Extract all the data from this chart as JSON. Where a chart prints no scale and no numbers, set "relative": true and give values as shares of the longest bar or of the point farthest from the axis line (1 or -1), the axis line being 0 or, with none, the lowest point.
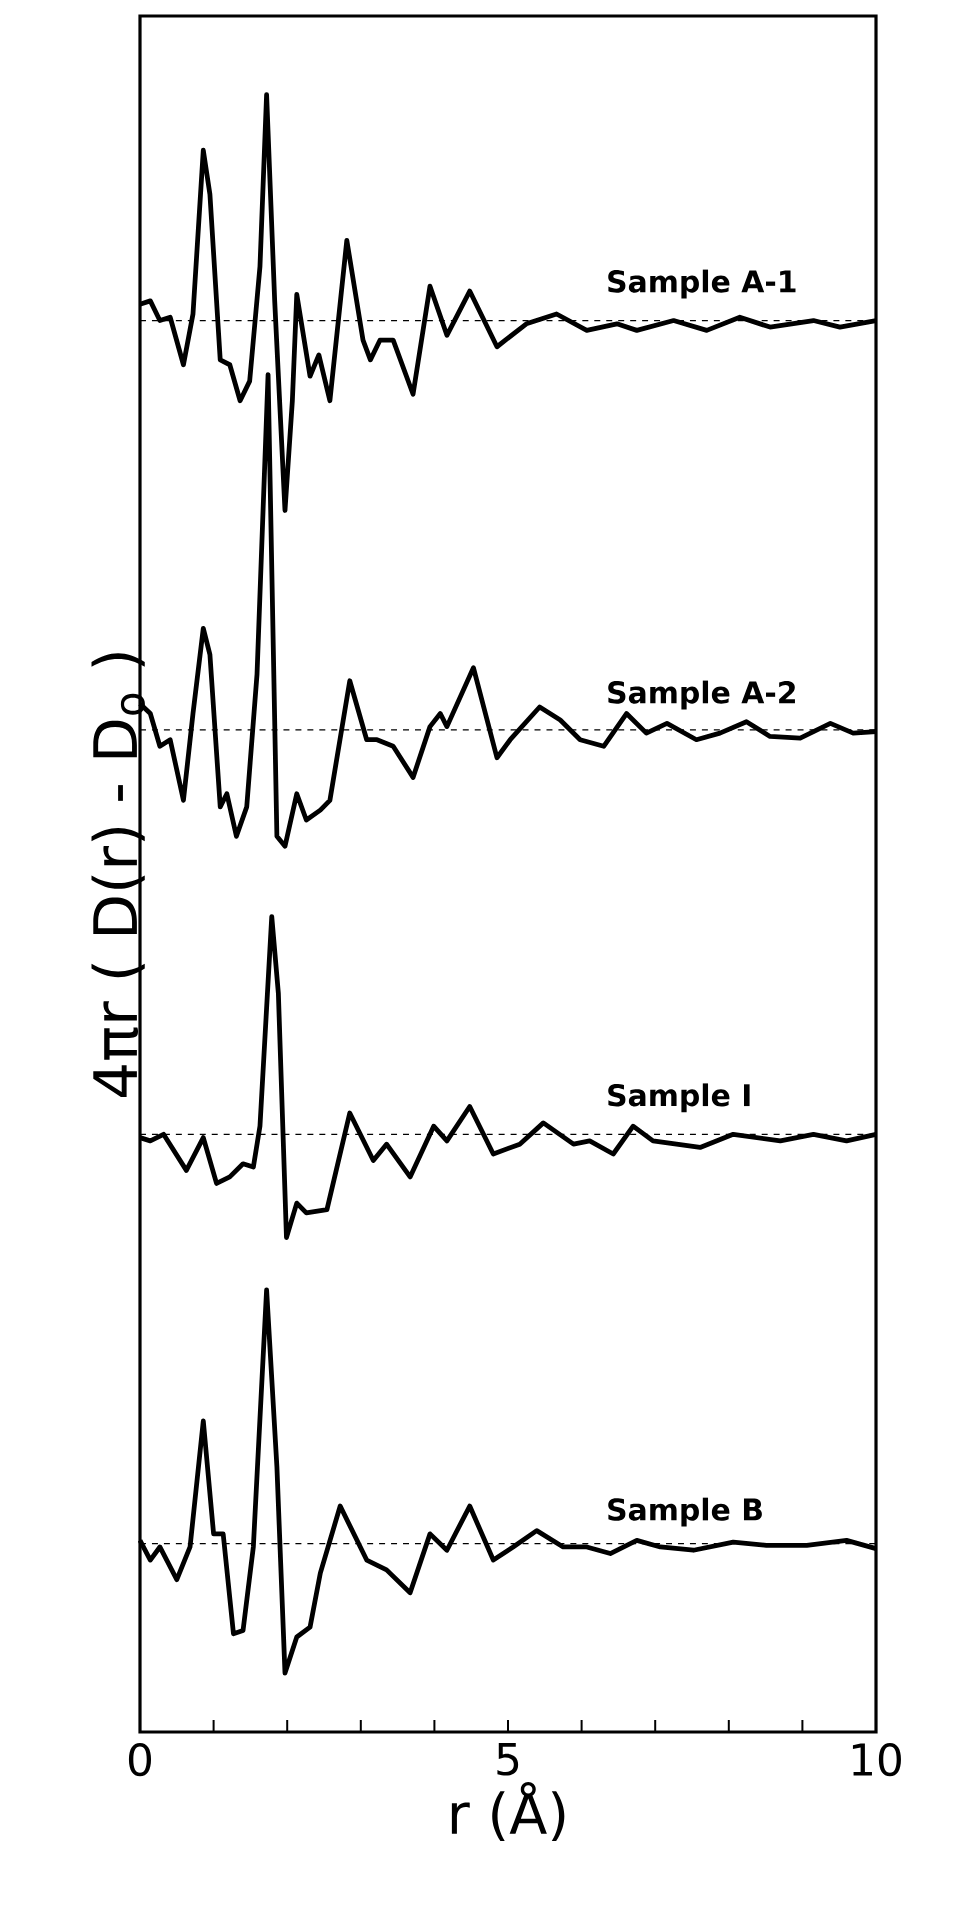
{
  "chart_data": {
    "type": "line",
    "relative": true,
    "xlabel": "r      (Å)",
    "ylabel": "4πr ( D(r) - D$_{o}$ )",
    "xlim": [
      0,
      10
    ],
    "xticks": [
      0,
      {
        "value": 1,
        "label": null
      },
      {
        "value": 2,
        "label": null
      },
      {
        "value": 3,
        "label": null
      },
      {
        "value": 4,
        "label": null
      },
      5,
      {
        "value": 6,
        "label": null
      },
      {
        "value": 7,
        "label": null
      },
      {
        "value": 8,
        "label": null
      },
      {
        "value": 9,
        "label": null
      },
      10
    ],
    "marker": "none",
    "line_style": "solid",
    "ref_lines": [
      {
        "axis": "y",
        "value": 0.862,
        "line_style": "dashed",
        "color": "#000000"
      },
      {
        "axis": "y",
        "value": 0.612,
        "line_style": "dashed",
        "color": "#000000"
      },
      {
        "axis": "y",
        "value": 0.365,
        "line_style": "dashed",
        "color": "#000000"
      },
      {
        "axis": "y",
        "value": 0.115,
        "line_style": "dashed",
        "color": "#000000"
      }
    ],
    "series": [
      {
        "name": "Sample A-1",
        "color": "#000000",
        "x": [
          0,
          0.14,
          0.27,
          0.41,
          0.59,
          0.72,
          0.86,
          0.95,
          1.09,
          1.22,
          1.36,
          1.49,
          1.63,
          1.72,
          1.83,
          1.97,
          2.07,
          2.13,
          2.31,
          2.43,
          2.58,
          2.81,
          3.03,
          3.13,
          3.26,
          3.44,
          3.71,
          3.94,
          4.17,
          4.48,
          4.85,
          5.25,
          5.66,
          6.07,
          6.48,
          6.75,
          7.25,
          7.7,
          8.15,
          8.56,
          9.15,
          9.51,
          10.0
        ],
        "values": [
          0.872,
          0.874,
          0.862,
          0.864,
          0.835,
          0.866,
          0.966,
          0.939,
          0.838,
          0.835,
          0.813,
          0.825,
          0.895,
          1.0,
          0.874,
          0.746,
          0.813,
          0.878,
          0.828,
          0.841,
          0.813,
          0.911,
          0.85,
          0.838,
          0.85,
          0.85,
          0.817,
          0.883,
          0.853,
          0.88,
          0.846,
          0.86,
          0.866,
          0.856,
          0.86,
          0.856,
          0.862,
          0.856,
          0.864,
          0.858,
          0.862,
          0.858,
          0.862
        ]
      },
      {
        "name": "Sample A-2",
        "color": "#000000",
        "x": [
          0,
          0.14,
          0.27,
          0.41,
          0.59,
          0.72,
          0.86,
          0.95,
          1.09,
          1.18,
          1.31,
          1.45,
          1.59,
          1.74,
          1.86,
          1.97,
          2.13,
          2.26,
          2.45,
          2.58,
          2.85,
          3.08,
          3.22,
          3.44,
          3.71,
          3.94,
          4.08,
          4.17,
          4.53,
          4.85,
          5.03,
          5.43,
          5.71,
          5.98,
          6.3,
          6.61,
          6.88,
          7.16,
          7.56,
          7.88,
          8.24,
          8.56,
          8.97,
          9.38,
          9.69,
          10.0
        ],
        "values": [
          0.628,
          0.622,
          0.602,
          0.606,
          0.569,
          0.622,
          0.674,
          0.658,
          0.565,
          0.573,
          0.547,
          0.565,
          0.646,
          0.829,
          0.547,
          0.541,
          0.573,
          0.557,
          0.563,
          0.569,
          0.642,
          0.606,
          0.606,
          0.602,
          0.583,
          0.614,
          0.622,
          0.614,
          0.65,
          0.595,
          0.606,
          0.626,
          0.618,
          0.606,
          0.602,
          0.622,
          0.61,
          0.616,
          0.606,
          0.61,
          0.617,
          0.608,
          0.607,
          0.616,
          0.61,
          0.611
        ]
      },
      {
        "name": "Sample I",
        "color": "#000000",
        "x": [
          0,
          0.14,
          0.32,
          0.63,
          0.86,
          1.04,
          1.22,
          1.4,
          1.54,
          1.63,
          1.79,
          1.88,
          1.99,
          2.13,
          2.26,
          2.54,
          2.85,
          3.17,
          3.35,
          3.67,
          3.99,
          4.17,
          4.48,
          4.8,
          5.16,
          5.48,
          5.89,
          6.11,
          6.43,
          6.7,
          6.97,
          7.61,
          8.06,
          8.7,
          9.15,
          9.6,
          10.0
        ],
        "values": [
          0.363,
          0.361,
          0.365,
          0.343,
          0.363,
          0.335,
          0.339,
          0.347,
          0.345,
          0.37,
          0.498,
          0.451,
          0.302,
          0.323,
          0.317,
          0.319,
          0.378,
          0.349,
          0.359,
          0.339,
          0.37,
          0.361,
          0.382,
          0.353,
          0.359,
          0.372,
          0.359,
          0.361,
          0.353,
          0.37,
          0.361,
          0.357,
          0.365,
          0.361,
          0.365,
          0.361,
          0.365
        ]
      },
      {
        "name": "Sample B",
        "color": "#000000",
        "x": [
          0,
          0.14,
          0.27,
          0.5,
          0.68,
          0.86,
          1.0,
          1.13,
          1.27,
          1.4,
          1.54,
          1.72,
          1.86,
          1.97,
          2.13,
          2.31,
          2.45,
          2.72,
          3.08,
          3.35,
          3.67,
          3.94,
          4.17,
          4.48,
          4.8,
          5.07,
          5.39,
          5.75,
          6.07,
          6.39,
          6.75,
          7.07,
          7.52,
          8.06,
          8.51,
          9.06,
          9.6,
          10.0
        ],
        "values": [
          0.117,
          0.105,
          0.113,
          0.093,
          0.113,
          0.19,
          0.121,
          0.121,
          0.06,
          0.062,
          0.113,
          0.27,
          0.162,
          0.036,
          0.058,
          0.064,
          0.097,
          0.138,
          0.105,
          0.099,
          0.085,
          0.121,
          0.111,
          0.138,
          0.105,
          0.113,
          0.123,
          0.113,
          0.113,
          0.109,
          0.117,
          0.113,
          0.111,
          0.116,
          0.114,
          0.114,
          0.117,
          0.112
        ]
      }
    ]
  }
}
